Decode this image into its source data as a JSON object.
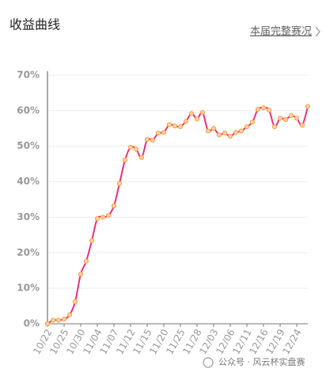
{
  "chart_data": {
    "type": "line",
    "title": "收益曲线",
    "categories": [
      "10/22",
      null,
      null,
      "10/25",
      null,
      null,
      "10/30",
      null,
      null,
      "11/04",
      null,
      null,
      "11/07",
      null,
      null,
      "11/12",
      null,
      null,
      "11/15",
      null,
      null,
      "11/20",
      null,
      null,
      "11/25",
      null,
      null,
      "11/28",
      null,
      null,
      "12/03",
      null,
      null,
      "12/06",
      null,
      null,
      "12/11",
      null,
      null,
      "12/16",
      null,
      null,
      "12/19",
      null,
      null,
      "12/24",
      null,
      null
    ],
    "series": [
      {
        "color": "#e8307a",
        "marker_color": "#f5a04e",
        "values": [
          0,
          1,
          1,
          1.3,
          2.5,
          6.2,
          14,
          17.6,
          23.4,
          29.6,
          30,
          30.5,
          33.2,
          39.5,
          46.1,
          49.7,
          49.2,
          46.8,
          51.9,
          51.7,
          53.7,
          53.9,
          56.1,
          55.7,
          55.5,
          57,
          59.2,
          57.7,
          59.5,
          54.3,
          55,
          53.2,
          53.7,
          52.8,
          53.9,
          54.3,
          55.5,
          56.8,
          60.4,
          60.8,
          60.2,
          55.5,
          57.9,
          57.5,
          58.6,
          57.9,
          55.9,
          61.2
        ]
      }
    ],
    "ylim": [
      0,
      70
    ],
    "yticks": [
      {
        "value": 0,
        "label": "0%"
      },
      {
        "value": 10,
        "label": "10%"
      },
      {
        "value": 20,
        "label": "20%"
      },
      {
        "value": 30,
        "label": "30%"
      },
      {
        "value": 40,
        "label": "40%"
      },
      {
        "value": 50,
        "label": "50%"
      },
      {
        "value": 60,
        "label": "60%"
      },
      {
        "value": 70,
        "label": "70%"
      }
    ],
    "grid": true
  },
  "link": "本届完整赛况",
  "watermark": "公众号 · 风云杯实盘赛"
}
